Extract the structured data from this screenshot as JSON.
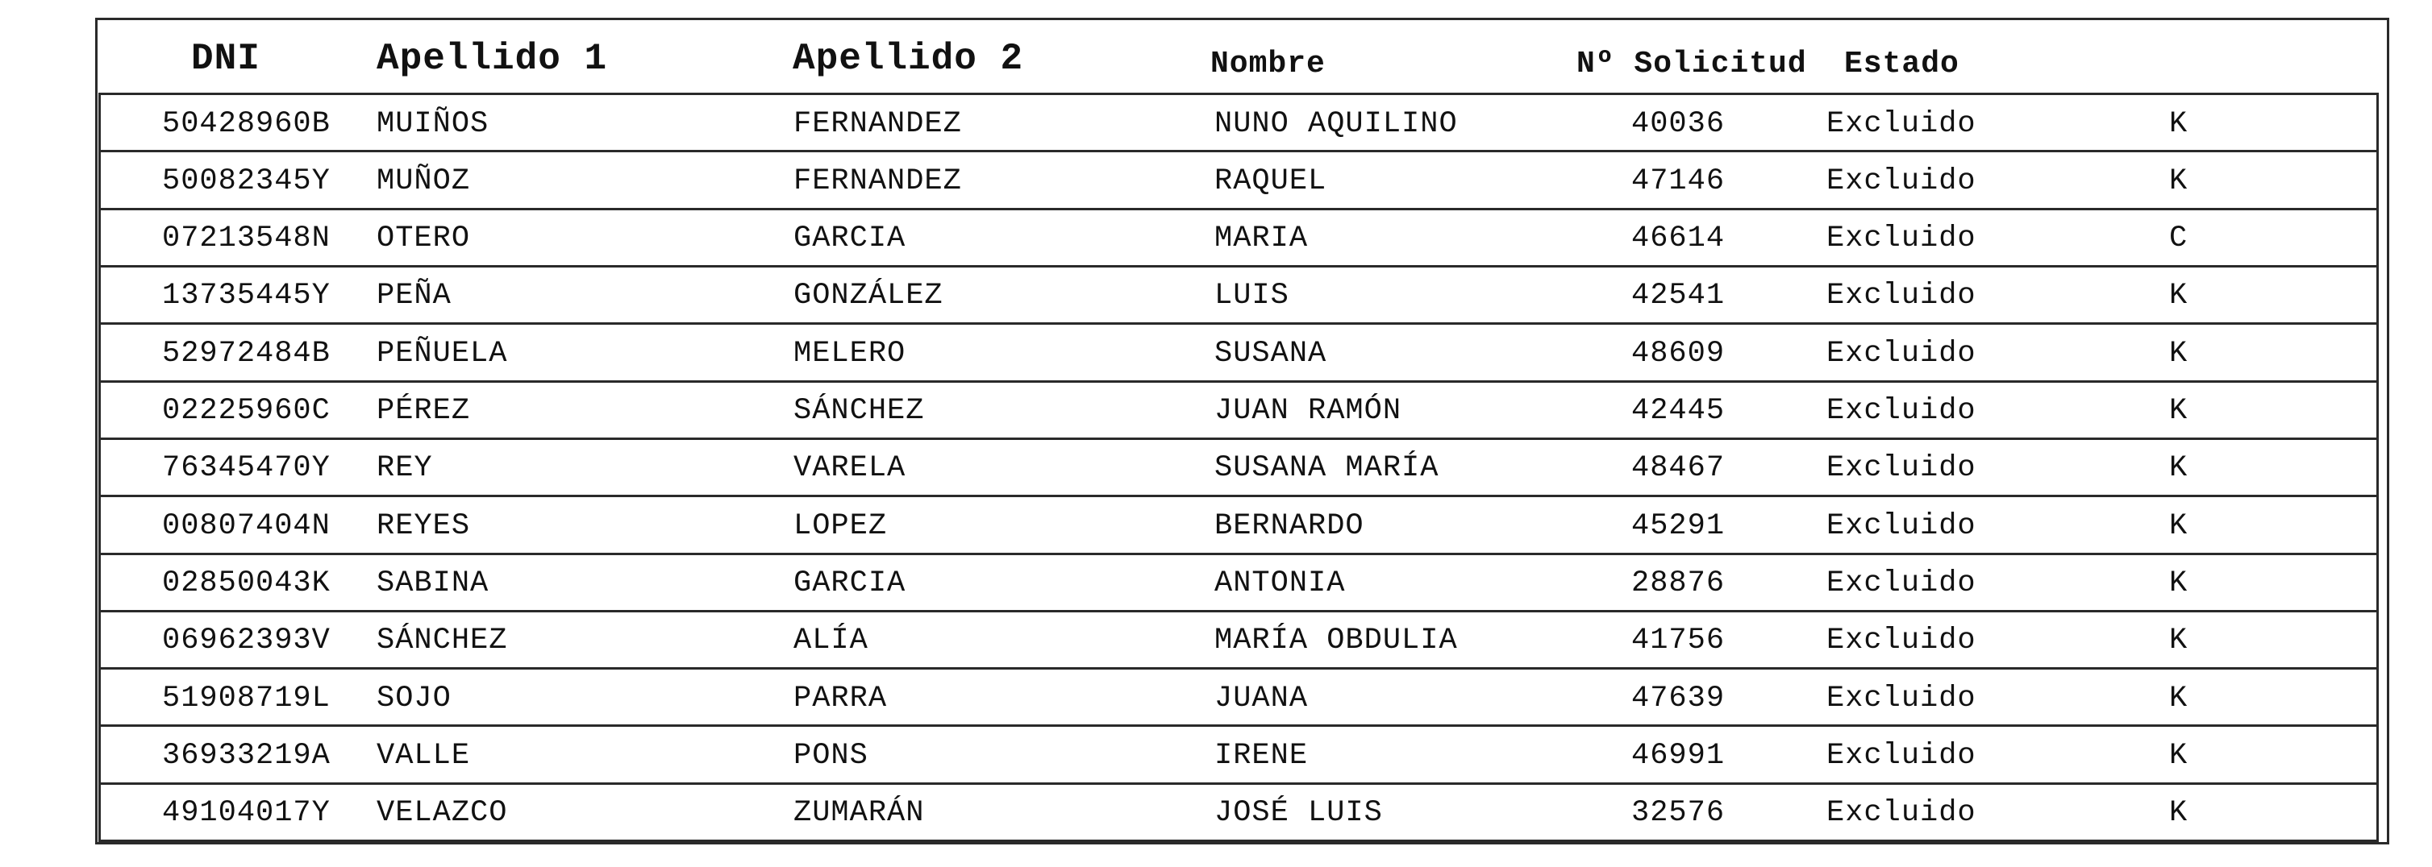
{
  "table": {
    "header": {
      "dni": "DNI",
      "apellido1": "Apellido 1",
      "apellido2": "Apellido 2",
      "nombre": "Nombre",
      "solicitud": "Nº Solicitud",
      "estado": "Estado"
    },
    "rows": [
      {
        "dni": "50428960B",
        "apellido1": "MUIÑOS",
        "apellido2": "FERNANDEZ",
        "nombre": "NUNO AQUILINO",
        "solicitud": "40036",
        "estado": "Excluido",
        "letra": "K"
      },
      {
        "dni": "50082345Y",
        "apellido1": "MUÑOZ",
        "apellido2": "FERNANDEZ",
        "nombre": "RAQUEL",
        "solicitud": "47146",
        "estado": "Excluido",
        "letra": "K"
      },
      {
        "dni": "07213548N",
        "apellido1": "OTERO",
        "apellido2": "GARCIA",
        "nombre": "MARIA",
        "solicitud": "46614",
        "estado": "Excluido",
        "letra": "C"
      },
      {
        "dni": "13735445Y",
        "apellido1": "PEÑA",
        "apellido2": "GONZÁLEZ",
        "nombre": "LUIS",
        "solicitud": "42541",
        "estado": "Excluido",
        "letra": "K"
      },
      {
        "dni": "52972484B",
        "apellido1": "PEÑUELA",
        "apellido2": "MELERO",
        "nombre": "SUSANA",
        "solicitud": "48609",
        "estado": "Excluido",
        "letra": "K"
      },
      {
        "dni": "02225960C",
        "apellido1": "PÉREZ",
        "apellido2": "SÁNCHEZ",
        "nombre": "JUAN RAMÓN",
        "solicitud": "42445",
        "estado": "Excluido",
        "letra": "K"
      },
      {
        "dni": "76345470Y",
        "apellido1": "REY",
        "apellido2": "VARELA",
        "nombre": "SUSANA MARÍA",
        "solicitud": "48467",
        "estado": "Excluido",
        "letra": "K"
      },
      {
        "dni": "00807404N",
        "apellido1": "REYES",
        "apellido2": "LOPEZ",
        "nombre": "BERNARDO",
        "solicitud": "45291",
        "estado": "Excluido",
        "letra": "K"
      },
      {
        "dni": "02850043K",
        "apellido1": "SABINA",
        "apellido2": "GARCIA",
        "nombre": "ANTONIA",
        "solicitud": "28876",
        "estado": "Excluido",
        "letra": "K"
      },
      {
        "dni": "06962393V",
        "apellido1": "SÁNCHEZ",
        "apellido2": "ALÍA",
        "nombre": "MARÍA OBDULIA",
        "solicitud": "41756",
        "estado": "Excluido",
        "letra": "K"
      },
      {
        "dni": "51908719L",
        "apellido1": "SOJO",
        "apellido2": "PARRA",
        "nombre": "JUANA",
        "solicitud": "47639",
        "estado": "Excluido",
        "letra": "K"
      },
      {
        "dni": "36933219A",
        "apellido1": "VALLE",
        "apellido2": "PONS",
        "nombre": "IRENE",
        "solicitud": "46991",
        "estado": "Excluido",
        "letra": "K"
      },
      {
        "dni": "49104017Y",
        "apellido1": "VELAZCO",
        "apellido2": "ZUMARÁN",
        "nombre": "JOSÉ LUIS",
        "solicitud": "32576",
        "estado": "Excluido",
        "letra": "K"
      }
    ]
  },
  "colors": {
    "text": "#111111",
    "border": "#2a2a2a",
    "background": "#ffffff"
  }
}
